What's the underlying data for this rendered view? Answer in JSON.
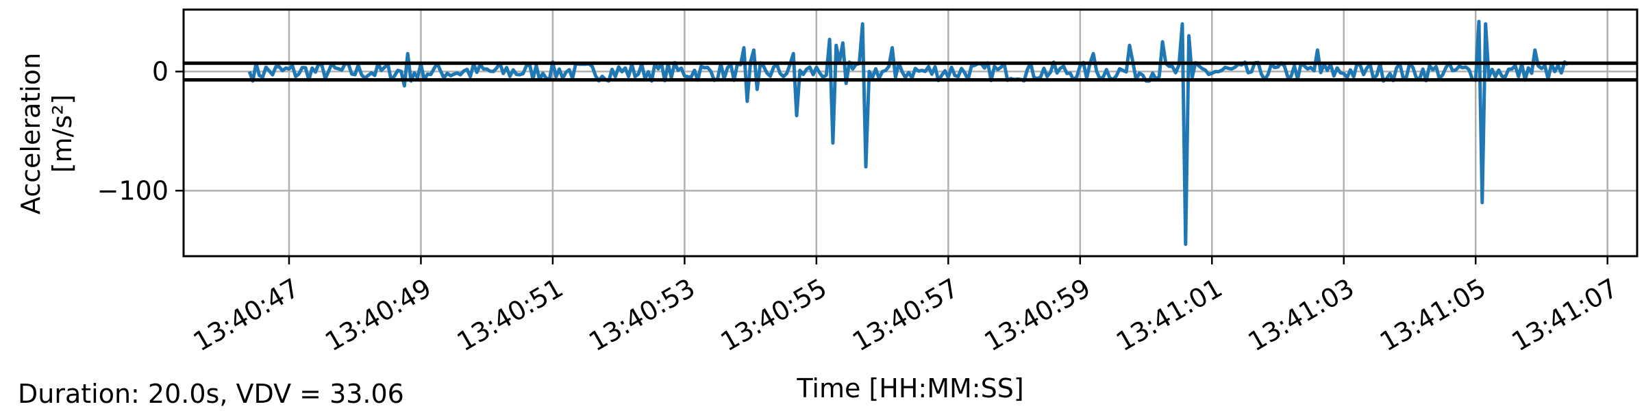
{
  "chart_data": {
    "type": "line",
    "title": "",
    "xlabel": "Time [HH:MM:SS]",
    "ylabel": "Acceleration",
    "ylabel_unit": "[m/s²]",
    "x_ticks": [
      "13:40:47",
      "13:40:49",
      "13:40:51",
      "13:40:53",
      "13:40:55",
      "13:40:57",
      "13:40:59",
      "13:41:01",
      "13:41:03",
      "13:41:05",
      "13:41:07"
    ],
    "y_ticks": [
      0,
      -100
    ],
    "xlim_seconds": [
      45.4,
      67.45
    ],
    "ylim": [
      -155,
      52
    ],
    "grid": true,
    "threshold_lines": [
      7,
      -7
    ],
    "series": [
      {
        "color": "#1f77b4",
        "x_seconds": [
          46.4,
          48.75,
          48.8,
          48.85,
          53.9,
          53.95,
          54.05,
          54.1,
          54.65,
          54.7,
          55.2,
          55.25,
          55.3,
          55.4,
          55.45,
          55.7,
          55.75,
          55.8,
          56.15,
          56.2,
          59.2,
          59.75,
          60.25,
          60.55,
          60.6,
          60.65,
          60.7,
          62.6,
          65.05,
          65.1,
          65.15,
          65.2,
          65.9,
          66.35
        ],
        "values": [
          0,
          -12,
          15,
          -8,
          20,
          -25,
          18,
          -15,
          15,
          -37,
          27,
          -60,
          22,
          24,
          -10,
          40,
          -80,
          0,
          20,
          -5,
          15,
          22,
          25,
          40,
          -145,
          30,
          -5,
          18,
          42,
          -110,
          40,
          -5,
          18,
          8
        ],
        "noise_amplitude": 8,
        "x_start_seconds": 46.4,
        "x_end_seconds": 66.4
      }
    ]
  },
  "footer": {
    "text": "Duration: 20.0s, VDV = 33.06"
  }
}
